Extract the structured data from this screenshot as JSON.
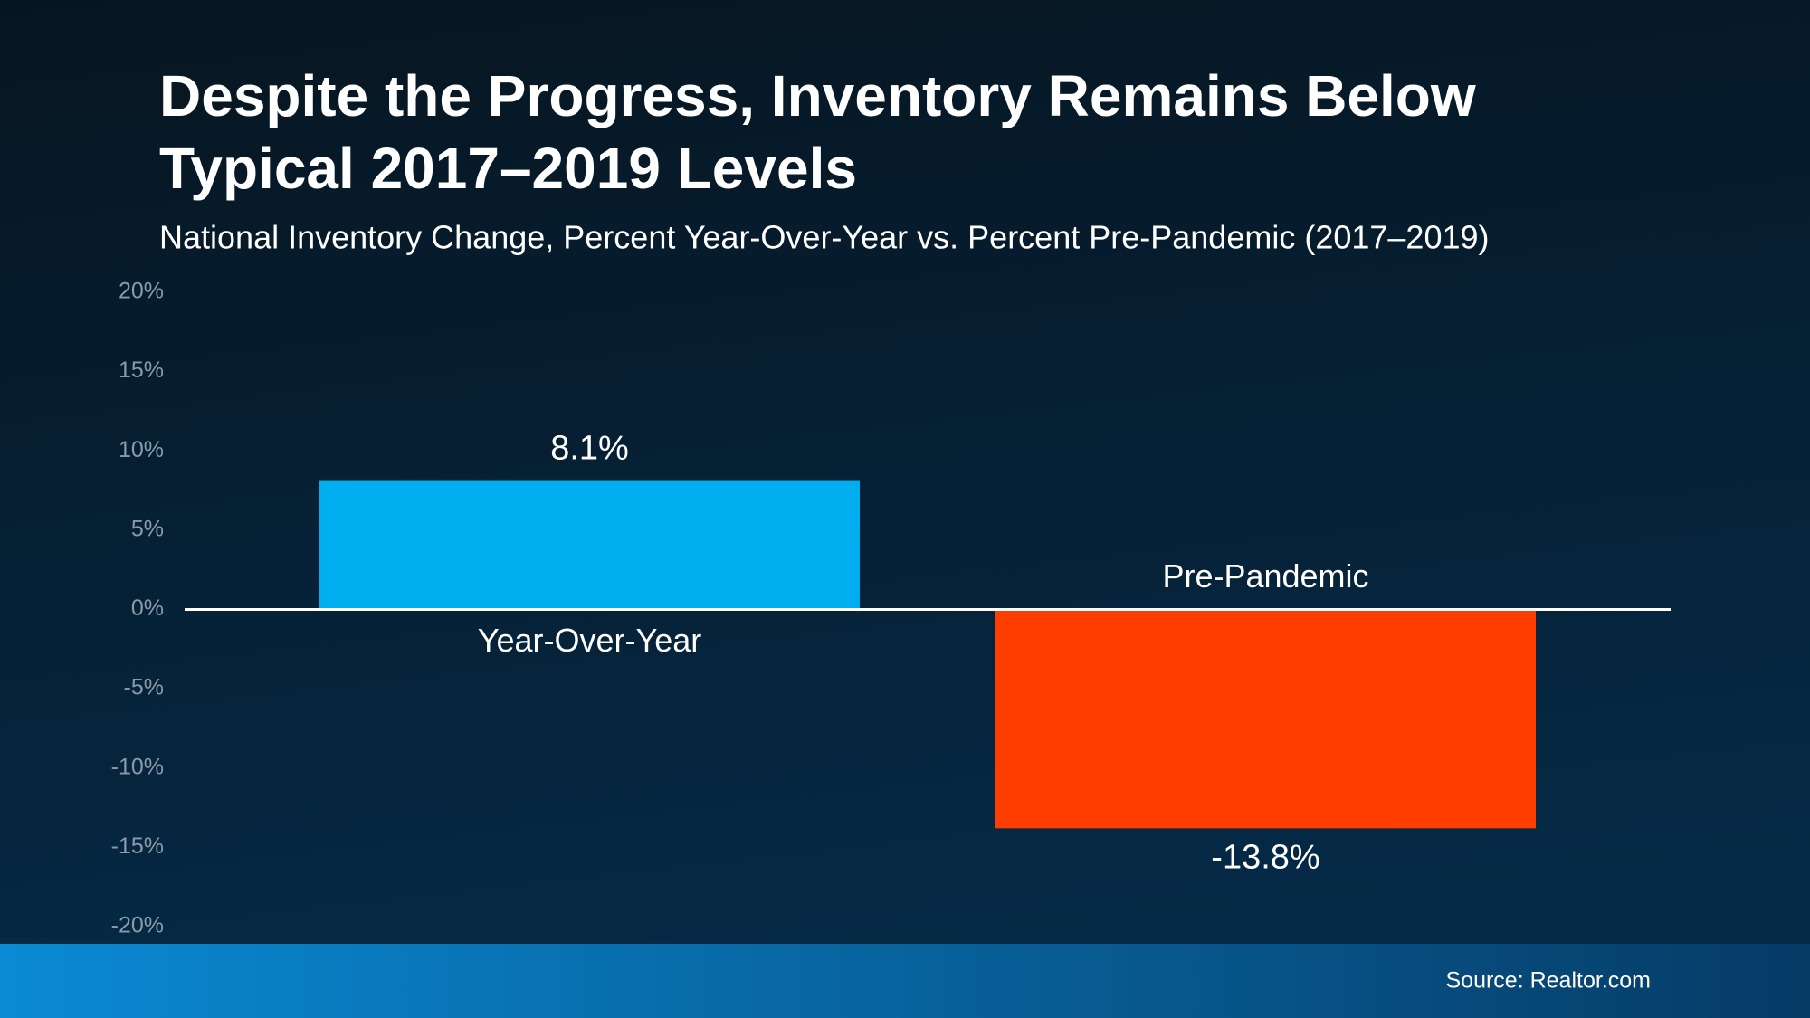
{
  "chart_data": {
    "type": "bar",
    "title_lines": [
      "Despite the Progress, Inventory Remains Below",
      "Typical 2017–2019 Levels"
    ],
    "subtitle": "National Inventory Change, Percent Year-Over-Year vs. Percent Pre-Pandemic (2017–2019)",
    "categories": [
      "Year-Over-Year",
      "Pre-Pandemic"
    ],
    "values": [
      8.1,
      -13.8
    ],
    "value_labels": [
      "8.1%",
      "-13.8%"
    ],
    "colors": [
      "#00adef",
      "#ff3d00"
    ],
    "ylim": [
      -20,
      20
    ],
    "yticks": [
      {
        "value": 20,
        "label": "20%"
      },
      {
        "value": 15,
        "label": "15%"
      },
      {
        "value": 10,
        "label": "10%"
      },
      {
        "value": 5,
        "label": "5%"
      },
      {
        "value": 0,
        "label": "0%"
      },
      {
        "value": -5,
        "label": "-5%"
      },
      {
        "value": -10,
        "label": "-10%"
      },
      {
        "value": -15,
        "label": "-15%"
      },
      {
        "value": -20,
        "label": "-20%"
      }
    ],
    "grid": false,
    "source": "Source: Realtor.com"
  }
}
